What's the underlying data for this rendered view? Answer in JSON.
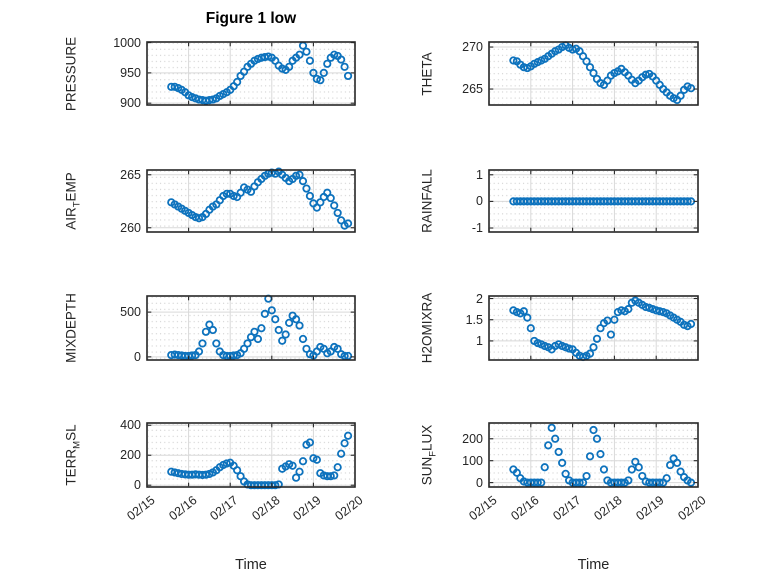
{
  "figure": {
    "title": "Figure 1 low",
    "colors": {
      "marker": "#0d72bd",
      "axis_box": "#262626",
      "major_grid": "#d9d9d9",
      "minor_grid_dots": "#cdcdcd",
      "label_text": "#262626",
      "background": "#ffffff"
    }
  },
  "chart_data": {
    "type": "scatter",
    "marker": "open-circle",
    "xlabel": "Time",
    "x_tick_labels": [
      "02/15",
      "02/16",
      "02/17",
      "02/18",
      "02/19",
      "02/20"
    ],
    "x_range_hours": [
      0,
      120
    ],
    "x_unit": "hours since 02/15 00:00",
    "grid": "major solid + dotted minor",
    "x_hours": [
      14,
      16,
      18,
      20,
      22,
      24,
      26,
      28,
      30,
      32,
      34,
      36,
      38,
      40,
      42,
      44,
      46,
      48,
      50,
      52,
      54,
      56,
      58,
      60,
      62,
      64,
      66,
      68,
      70,
      72,
      74,
      76,
      78,
      80,
      82,
      84,
      86,
      88,
      90,
      92,
      94,
      96,
      98,
      100,
      102,
      104,
      106,
      108,
      110,
      112,
      114,
      116
    ],
    "subplots": [
      {
        "name": "PRESSURE",
        "ylabel_parts": [
          {
            "t": "PRESSURE"
          }
        ],
        "yticks": [
          900,
          950,
          1000
        ],
        "ytick_labels": [
          "900",
          "950",
          "1000"
        ],
        "ylim": [
          897,
          1001
        ],
        "ylabel_offset": -76,
        "show_xticks": false,
        "values": [
          927,
          927,
          925,
          922,
          918,
          913,
          910,
          908,
          906,
          905,
          904,
          905,
          906,
          908,
          912,
          915,
          918,
          922,
          928,
          935,
          945,
          952,
          960,
          965,
          970,
          973,
          975,
          976,
          977,
          975,
          970,
          962,
          957,
          955,
          960,
          970,
          975,
          980,
          995,
          985,
          970,
          950,
          940,
          938,
          950,
          965,
          975,
          980,
          978,
          972,
          960,
          945
        ]
      },
      {
        "name": "THETA",
        "ylabel_parts": [
          {
            "t": "THETA"
          }
        ],
        "yticks": [
          265,
          270
        ],
        "ytick_labels": [
          "265",
          "270"
        ],
        "ylim": [
          263.1,
          270.6
        ],
        "ylabel_offset": -62,
        "show_xticks": false,
        "values": [
          268.4,
          268.3,
          267.9,
          267.6,
          267.5,
          267.7,
          268.0,
          268.2,
          268.4,
          268.6,
          268.9,
          269.2,
          269.5,
          269.7,
          270.0,
          270.2,
          269.9,
          269.7,
          269.8,
          269.5,
          268.9,
          268.3,
          267.6,
          266.9,
          266.2,
          265.7,
          265.5,
          266.0,
          266.6,
          266.9,
          267.1,
          267.4,
          267.0,
          266.6,
          266.1,
          265.7,
          266.0,
          266.4,
          266.7,
          266.8,
          266.5,
          266.0,
          265.5,
          265.0,
          264.6,
          264.2,
          263.9,
          263.7,
          264.2,
          264.9,
          265.3,
          265.1
        ]
      },
      {
        "name": "AIR_TEMP",
        "ylabel_parts": [
          {
            "t": "AIR"
          },
          {
            "s": "T"
          },
          {
            "t": "EMP"
          }
        ],
        "yticks": [
          260,
          265
        ],
        "ytick_labels": [
          "260",
          "265"
        ],
        "ylim": [
          259.6,
          265.45
        ],
        "ylabel_offset": -76,
        "show_xticks": false,
        "values": [
          262.4,
          262.2,
          262.0,
          261.8,
          261.6,
          261.4,
          261.2,
          261.0,
          260.9,
          261.0,
          261.3,
          261.7,
          262.0,
          262.2,
          262.6,
          263.0,
          263.2,
          263.2,
          263.0,
          262.9,
          263.3,
          263.8,
          263.6,
          263.4,
          263.9,
          264.3,
          264.6,
          264.9,
          265.1,
          265.2,
          265.1,
          265.3,
          265.0,
          264.7,
          264.4,
          264.6,
          264.9,
          265.0,
          264.4,
          263.7,
          263.0,
          262.3,
          261.9,
          262.4,
          262.9,
          263.3,
          262.8,
          262.1,
          261.4,
          260.7,
          260.2,
          260.4
        ]
      },
      {
        "name": "RAINFALL",
        "ylabel_parts": [
          {
            "t": "RAINFALL"
          }
        ],
        "yticks": [
          -1,
          0,
          1
        ],
        "ytick_labels": [
          "-1",
          "0",
          "1"
        ],
        "ylim": [
          -1.15,
          1.18
        ],
        "ylabel_offset": -62,
        "show_xticks": false,
        "values": [
          0,
          0,
          0,
          0,
          0,
          0,
          0,
          0,
          0,
          0,
          0,
          0,
          0,
          0,
          0,
          0,
          0,
          0,
          0,
          0,
          0,
          0,
          0,
          0,
          0,
          0,
          0,
          0,
          0,
          0,
          0,
          0,
          0,
          0,
          0,
          0,
          0,
          0,
          0,
          0,
          0,
          0,
          0,
          0,
          0,
          0,
          0,
          0,
          0,
          0,
          0,
          0
        ]
      },
      {
        "name": "MIXDEPTH",
        "ylabel_parts": [
          {
            "t": "MIXDEPTH"
          }
        ],
        "yticks": [
          0,
          500
        ],
        "ytick_labels": [
          "0",
          "500"
        ],
        "ylim": [
          -35,
          680
        ],
        "ylabel_offset": -76,
        "show_xticks": false,
        "values": [
          20,
          25,
          20,
          15,
          10,
          10,
          15,
          20,
          60,
          150,
          280,
          360,
          300,
          150,
          60,
          20,
          10,
          10,
          15,
          20,
          40,
          90,
          150,
          220,
          280,
          200,
          320,
          480,
          650,
          520,
          420,
          300,
          180,
          250,
          380,
          460,
          420,
          350,
          200,
          90,
          30,
          15,
          60,
          110,
          90,
          40,
          60,
          110,
          90,
          30,
          10,
          10
        ]
      },
      {
        "name": "H2OMIXRA",
        "ylabel_parts": [
          {
            "t": "H2OMIXRA"
          }
        ],
        "yticks": [
          1,
          1.5,
          2
        ],
        "ytick_labels": [
          "1",
          "1.5",
          "2"
        ],
        "ylim": [
          0.55,
          2.06
        ],
        "ylabel_offset": -62,
        "show_xticks": false,
        "values": [
          1.72,
          1.68,
          1.65,
          1.7,
          1.55,
          1.3,
          1.0,
          0.95,
          0.92,
          0.88,
          0.85,
          0.8,
          0.88,
          0.92,
          0.88,
          0.85,
          0.82,
          0.8,
          0.72,
          0.65,
          0.62,
          0.65,
          0.7,
          0.85,
          1.05,
          1.3,
          1.42,
          1.48,
          1.15,
          1.5,
          1.68,
          1.72,
          1.7,
          1.75,
          1.9,
          1.95,
          1.9,
          1.85,
          1.8,
          1.78,
          1.75,
          1.72,
          1.7,
          1.68,
          1.65,
          1.6,
          1.55,
          1.5,
          1.45,
          1.38,
          1.35,
          1.4
        ]
      },
      {
        "name": "TERR_MSL",
        "ylabel_parts": [
          {
            "t": "TERR"
          },
          {
            "s": "M"
          },
          {
            "t": "SL"
          }
        ],
        "yticks": [
          0,
          200,
          400
        ],
        "ytick_labels": [
          "0",
          "200",
          "400"
        ],
        "ylim": [
          -12,
          415
        ],
        "ylabel_offset": -76,
        "show_xticks": true,
        "values": [
          90,
          85,
          80,
          75,
          72,
          70,
          70,
          72,
          70,
          68,
          70,
          75,
          85,
          100,
          120,
          135,
          145,
          150,
          130,
          100,
          60,
          25,
          5,
          0,
          0,
          0,
          0,
          0,
          0,
          0,
          0,
          5,
          110,
          125,
          140,
          130,
          50,
          90,
          160,
          270,
          285,
          180,
          170,
          80,
          65,
          60,
          60,
          65,
          120,
          210,
          280,
          330
        ]
      },
      {
        "name": "SUN_FLUX",
        "ylabel_parts": [
          {
            "t": "SUN"
          },
          {
            "s": "F"
          },
          {
            "t": "LUX"
          }
        ],
        "yticks": [
          0,
          100,
          200
        ],
        "ytick_labels": [
          "0",
          "100",
          "200"
        ],
        "ylim": [
          -20,
          272
        ],
        "ylabel_offset": -62,
        "show_xticks": true,
        "values": [
          60,
          45,
          20,
          5,
          0,
          0,
          0,
          0,
          0,
          70,
          170,
          250,
          200,
          140,
          90,
          40,
          10,
          0,
          0,
          0,
          0,
          30,
          120,
          240,
          200,
          130,
          60,
          10,
          0,
          0,
          0,
          0,
          0,
          10,
          60,
          95,
          70,
          30,
          5,
          0,
          0,
          0,
          0,
          0,
          20,
          80,
          110,
          90,
          50,
          25,
          10,
          0
        ]
      }
    ]
  }
}
